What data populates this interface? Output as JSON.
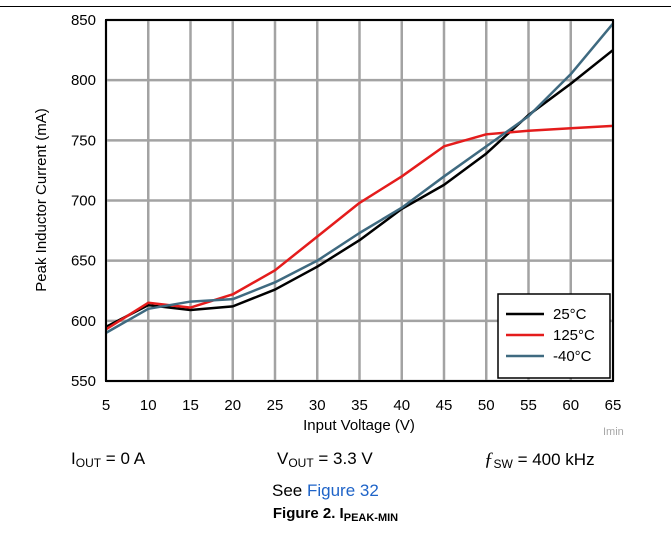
{
  "chart_data": {
    "type": "line",
    "xlabel": "Input Voltage (V)",
    "ylabel": "Peak Inductor Current (mA)",
    "xlim": [
      5,
      65
    ],
    "ylim": [
      550,
      850
    ],
    "xticks": [
      5,
      10,
      15,
      20,
      25,
      30,
      35,
      40,
      45,
      50,
      55,
      60,
      65
    ],
    "yticks": [
      550,
      600,
      650,
      700,
      750,
      800,
      850
    ],
    "grid": true,
    "legend_position": "bottom-right",
    "series": [
      {
        "name": "25°C",
        "color": "#000000",
        "x": [
          5,
          10,
          15,
          20,
          25,
          30,
          35,
          40,
          45,
          50,
          55,
          60,
          65
        ],
        "y": [
          595,
          613,
          609,
          612,
          626,
          645,
          667,
          693,
          713,
          739,
          771,
          797,
          825
        ]
      },
      {
        "name": "125°C",
        "color": "#e41c1c",
        "x": [
          5,
          10,
          15,
          20,
          25,
          30,
          35,
          40,
          45,
          50,
          55,
          60,
          65
        ],
        "y": [
          593,
          615,
          611,
          622,
          642,
          670,
          698,
          720,
          745,
          755,
          758,
          760,
          762
        ]
      },
      {
        "name": "-40°C",
        "color": "#3f6a80",
        "x": [
          5,
          10,
          15,
          20,
          25,
          30,
          35,
          40,
          45,
          50,
          55,
          60,
          65
        ],
        "y": [
          590,
          610,
          616,
          618,
          632,
          650,
          673,
          694,
          720,
          745,
          770,
          805,
          847
        ]
      }
    ]
  },
  "conditions": {
    "iout_main": "I",
    "iout_sub": "OUT",
    "iout_value": " = 0 A",
    "vout_main": "V",
    "vout_sub": "OUT",
    "vout_value": " = 3.3 V",
    "fsw_main": "ƒ",
    "fsw_sub": "SW",
    "fsw_value": " = 400 kHz",
    "see_text": "See ",
    "see_link": "Figure 32"
  },
  "watermark": "Imin",
  "figure_title": {
    "prefix": "Figure 2. I",
    "sub": "PEAK-MIN"
  }
}
